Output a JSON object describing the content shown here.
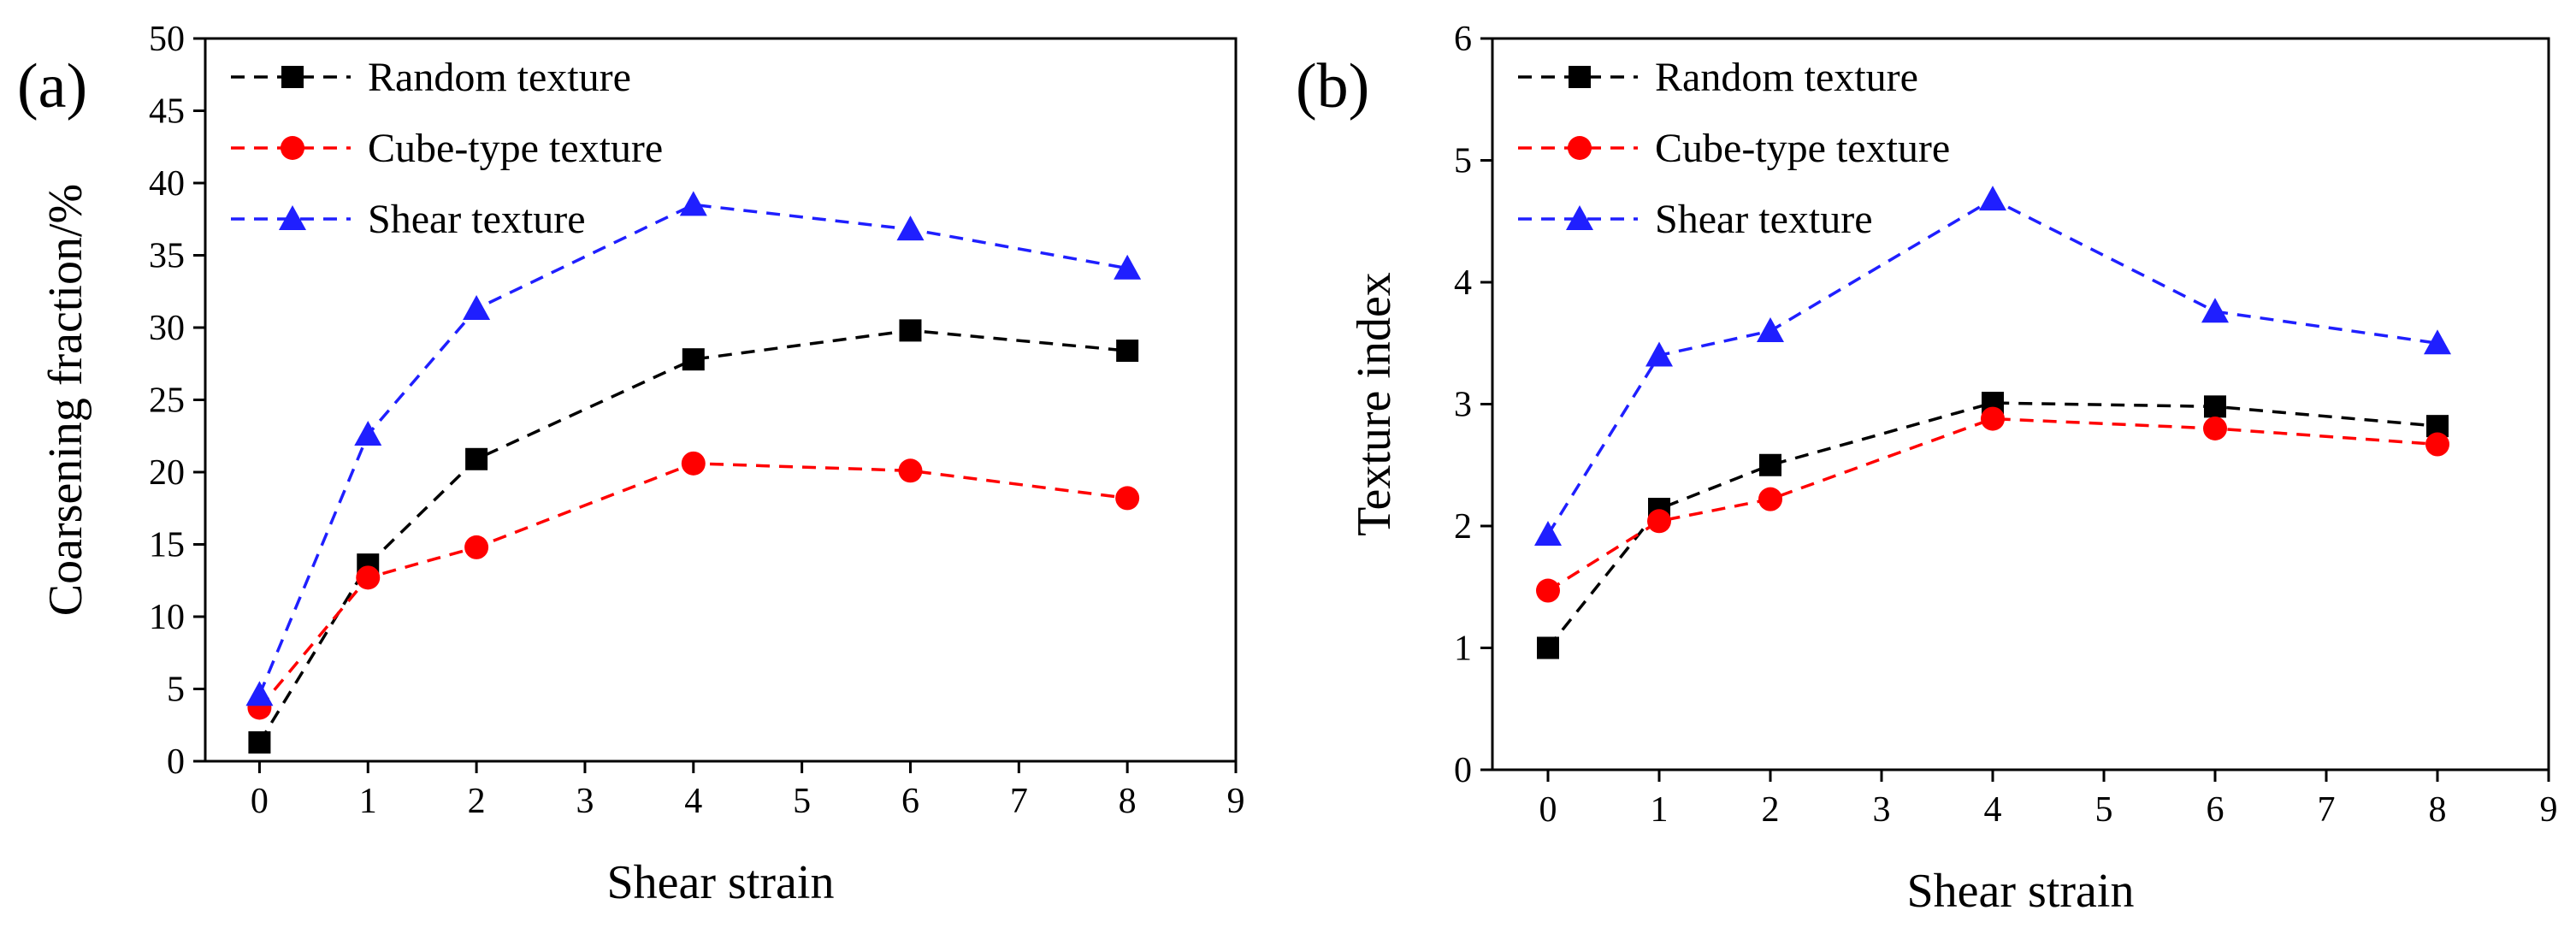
{
  "chart_data": [
    {
      "type": "line",
      "panel_label": "(a)",
      "xlabel": "Shear strain",
      "ylabel": "Coarsening fraction/%",
      "xlim": [
        -0.5,
        9
      ],
      "ylim": [
        0,
        50
      ],
      "xticks": [
        0,
        1,
        2,
        3,
        4,
        5,
        6,
        7,
        8,
        9
      ],
      "yticks": [
        0,
        5,
        10,
        15,
        20,
        25,
        30,
        35,
        40,
        45,
        50
      ],
      "grid": false,
      "legend": "top-left",
      "x": [
        0,
        1,
        2,
        4,
        6,
        8
      ],
      "series": [
        {
          "name": "Random texture",
          "color": "#000000",
          "marker": "square",
          "values": [
            1.3,
            13.6,
            20.9,
            27.8,
            29.8,
            28.4
          ]
        },
        {
          "name": "Cube-type texture",
          "color": "#ff0000",
          "marker": "circle",
          "values": [
            3.7,
            12.7,
            14.8,
            20.6,
            20.1,
            18.2
          ]
        },
        {
          "name": "Shear texture",
          "color": "#1f1fff",
          "marker": "triangle",
          "values": [
            4.6,
            22.6,
            31.3,
            38.5,
            36.8,
            34.1
          ]
        }
      ]
    },
    {
      "type": "line",
      "panel_label": "(b)",
      "xlabel": "Shear strain",
      "ylabel": "Texture index",
      "xlim": [
        -0.5,
        9
      ],
      "ylim": [
        0,
        6
      ],
      "xticks": [
        0,
        1,
        2,
        3,
        4,
        5,
        6,
        7,
        8,
        9
      ],
      "yticks": [
        0,
        1,
        2,
        3,
        4,
        5,
        6
      ],
      "grid": false,
      "legend": "top-left",
      "x": [
        0,
        1,
        2,
        4,
        6,
        8
      ],
      "series": [
        {
          "name": "Random texture",
          "color": "#000000",
          "marker": "square",
          "values": [
            1.0,
            2.14,
            2.5,
            3.01,
            2.98,
            2.82
          ]
        },
        {
          "name": "Cube-type texture",
          "color": "#ff0000",
          "marker": "circle",
          "values": [
            1.47,
            2.04,
            2.22,
            2.88,
            2.8,
            2.67
          ]
        },
        {
          "name": "Shear texture",
          "color": "#1f1fff",
          "marker": "triangle",
          "values": [
            1.93,
            3.4,
            3.6,
            4.68,
            3.76,
            3.5
          ]
        }
      ]
    }
  ]
}
